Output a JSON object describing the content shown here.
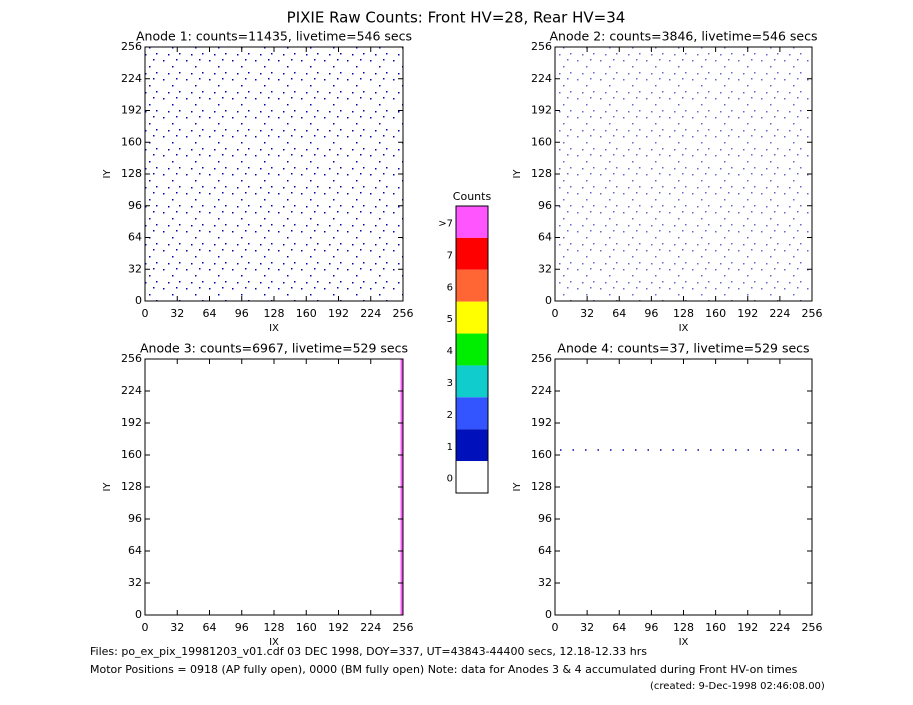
{
  "title": "PIXIE Raw Counts:  Front HV=28, Rear HV=34",
  "chart_data": [
    {
      "type": "scatter",
      "title": "Anode 1: counts=11435, livetime=546 secs",
      "xlabel": "IX",
      "ylabel": "IY",
      "xlim": [
        0,
        256
      ],
      "ylim": [
        0,
        256
      ],
      "xticks": [
        0,
        32,
        64,
        96,
        128,
        160,
        192,
        224,
        256
      ],
      "yticks": [
        0,
        32,
        64,
        96,
        128,
        160,
        192,
        224,
        256
      ]
    },
    {
      "type": "scatter",
      "title": "Anode 2: counts=3846, livetime=546 secs",
      "xlabel": "IX",
      "ylabel": "IY",
      "xlim": [
        0,
        256
      ],
      "ylim": [
        0,
        256
      ],
      "xticks": [
        0,
        32,
        64,
        96,
        128,
        160,
        192,
        224,
        256
      ],
      "yticks": [
        0,
        32,
        64,
        96,
        128,
        160,
        192,
        224,
        256
      ]
    },
    {
      "type": "scatter",
      "title": "Anode 3: counts=6967, livetime=529 secs",
      "xlabel": "IX",
      "ylabel": "IY",
      "xlim": [
        0,
        256
      ],
      "ylim": [
        0,
        256
      ],
      "xticks": [
        0,
        32,
        64,
        96,
        128,
        160,
        192,
        224,
        256
      ],
      "yticks": [
        0,
        32,
        64,
        96,
        128,
        160,
        192,
        224,
        256
      ]
    },
    {
      "type": "scatter",
      "title": "Anode 4: counts=37, livetime=529 secs",
      "xlabel": "IX",
      "ylabel": "IY",
      "xlim": [
        0,
        256
      ],
      "ylim": [
        0,
        256
      ],
      "xticks": [
        0,
        32,
        64,
        96,
        128,
        160,
        192,
        224,
        256
      ],
      "yticks": [
        0,
        32,
        64,
        96,
        128,
        160,
        192,
        224,
        256
      ]
    }
  ],
  "colorbar": {
    "title": "Counts",
    "labels": [
      ">7",
      "7",
      "6",
      "5",
      "4",
      "3",
      "2",
      "1",
      "0"
    ],
    "colors": [
      "#ff55ff",
      "#ff0000",
      "#ff6633",
      "#ffff00",
      "#00ee00",
      "#11cccc",
      "#3355ff",
      "#0011bb",
      "#ffffff"
    ]
  },
  "footer": [
    "Files: po_ex_pix_19981203_v01.cdf    03 DEC 1998, DOY=337, UT=43843-44400 secs, 12.18-12.33 hrs",
    "Motor Positions = 0918 (AP fully open), 0000 (BM fully open)    Note: data for Anodes 3 & 4 accumulated during Front HV-on times",
    "(created:  9-Dec-1998 02:46:08.00)"
  ]
}
